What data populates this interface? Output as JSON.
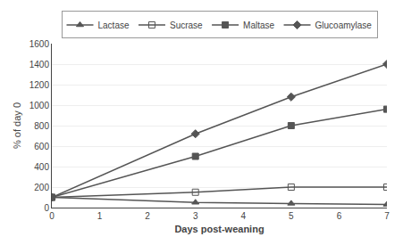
{
  "chart_data": {
    "type": "line",
    "x": [
      0,
      3,
      5,
      7
    ],
    "series": [
      {
        "name": "Lactase",
        "color": "#555555",
        "marker": "triangle-up",
        "values": [
          100,
          50,
          40,
          30
        ]
      },
      {
        "name": "Sucrase",
        "color": "#555555",
        "marker": "square-open",
        "values": [
          100,
          150,
          200,
          200
        ]
      },
      {
        "name": "Maltase",
        "color": "#555555",
        "marker": "square",
        "values": [
          100,
          500,
          800,
          960
        ]
      },
      {
        "name": "Glucoamylase",
        "color": "#555555",
        "marker": "diamond",
        "values": [
          100,
          720,
          1080,
          1400
        ]
      }
    ],
    "xlabel": "Days post-weaning",
    "ylabel": "% of day 0",
    "xlim": [
      0,
      7
    ],
    "ylim": [
      0,
      1600
    ],
    "xticks": [
      0,
      1,
      2,
      3,
      4,
      5,
      6,
      7
    ],
    "yticks": [
      0,
      200,
      400,
      600,
      800,
      1000,
      1200,
      1400,
      1600
    ],
    "grid": "y",
    "legend": "top"
  }
}
